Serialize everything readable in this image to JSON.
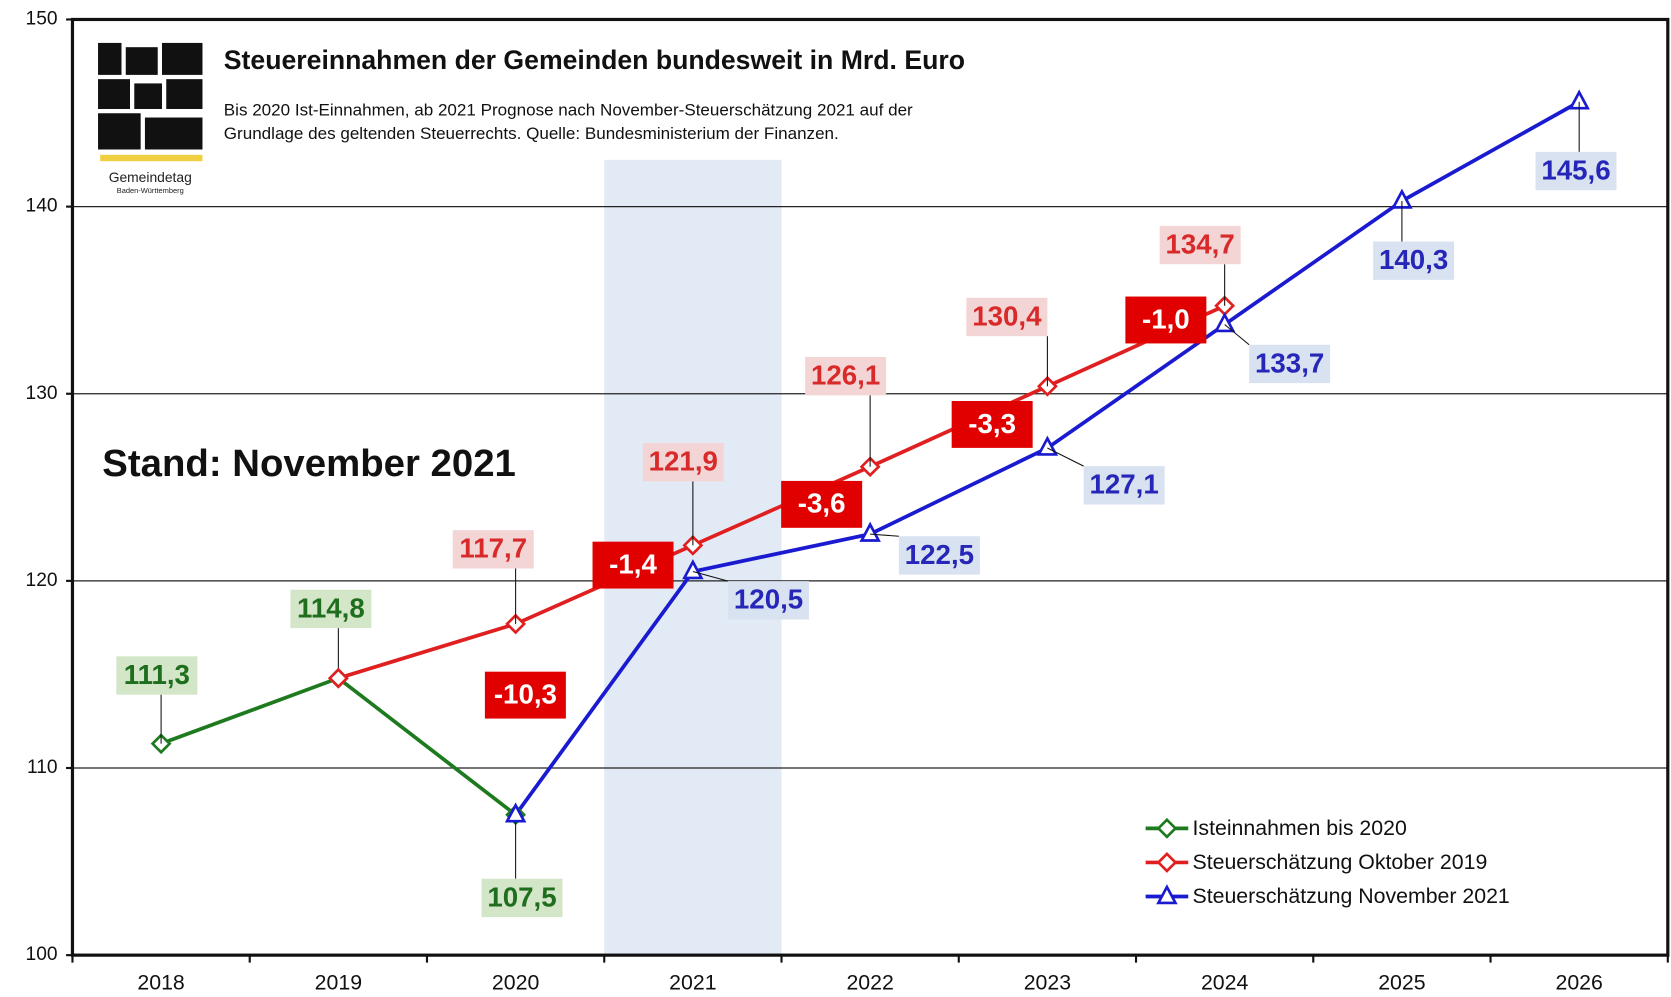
{
  "chart_data": {
    "type": "line",
    "title": "Steuereinnahmen der Gemeinden bundesweit in Mrd. Euro",
    "subtitle": [
      "Bis 2020 Ist-Einnahmen, ab 2021 Prognose nach November-Steuerschätzung 2021 auf der",
      "Grundlage des geltenden Steuerrechts. Quelle: Bundesministerium der Finanzen."
    ],
    "logo_text": [
      "Gemeindetag",
      "Baden-Württemberg"
    ],
    "annotation": "Stand: November 2021",
    "highlight_category": "2021",
    "categories": [
      "2018",
      "2019",
      "2020",
      "2021",
      "2022",
      "2023",
      "2024",
      "2025",
      "2026"
    ],
    "ylim": [
      100,
      150
    ],
    "yticks": [
      100,
      110,
      120,
      130,
      140,
      150
    ],
    "grid": true,
    "legend": "lower right",
    "series": [
      {
        "name": "Isteinnahmen bis 2020",
        "color": "#1e7a1e",
        "marker": "diamond",
        "values": [
          111.3,
          114.8,
          107.5,
          null,
          null,
          null,
          null,
          null,
          null
        ],
        "value_labels": [
          "111,3",
          "114,8",
          "107,5",
          null,
          null,
          null,
          null,
          null,
          null
        ]
      },
      {
        "name": "Steuerschätzung Oktober 2019",
        "color": "#e02020",
        "marker": "diamond",
        "values": [
          null,
          114.8,
          117.7,
          121.9,
          126.1,
          130.4,
          134.7,
          null,
          null
        ],
        "value_labels": [
          null,
          null,
          "117,7",
          "121,9",
          "126,1",
          "130,4",
          "134,7",
          null,
          null
        ]
      },
      {
        "name": "Steuerschätzung November 2021",
        "color": "#1a1ad0",
        "marker": "triangle",
        "values": [
          null,
          null,
          107.5,
          120.5,
          122.5,
          127.1,
          133.7,
          140.3,
          145.6
        ],
        "value_labels": [
          null,
          null,
          null,
          "120,5",
          "122,5",
          "127,1",
          "133,7",
          "140,3",
          "145,6"
        ]
      }
    ],
    "differences": [
      {
        "category": "2020",
        "label": "-10,3"
      },
      {
        "category": "2021",
        "label": "-1,4"
      },
      {
        "category": "2022",
        "label": "-3,6"
      },
      {
        "category": "2023",
        "label": "-3,3"
      },
      {
        "category": "2024",
        "label": "-1,0"
      }
    ]
  }
}
